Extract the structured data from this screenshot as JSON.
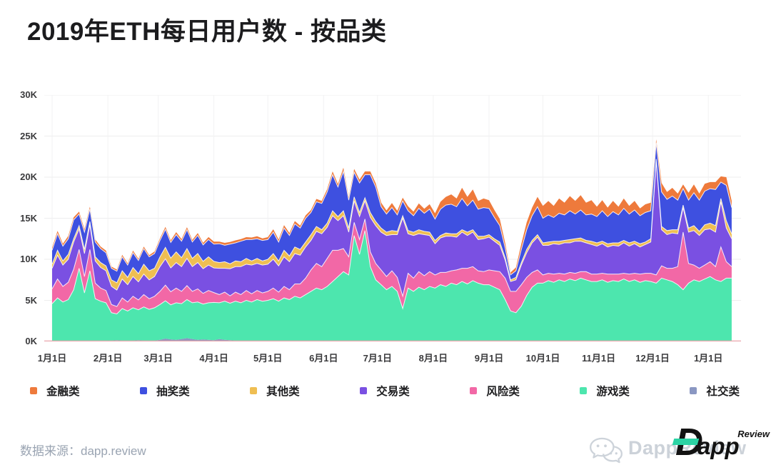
{
  "page": {
    "title": "2019年ETH每日用户数 - 按品类",
    "footer": {
      "source_text": "数据来源：dapp.review"
    },
    "watermark": {
      "gray_text": "DappReview",
      "logo_d": "D",
      "logo_app": "app",
      "logo_review": "Review",
      "logo_accent_color": "#2BD3A4"
    }
  },
  "chart_data": {
    "type": "area",
    "stacked": true,
    "title": "2019年ETH每日用户数 - 按品类",
    "values_unit": "thousands of daily users (K)",
    "grid": true,
    "ylim": [
      0,
      30
    ],
    "y_tick_labels": [
      "0K",
      "5K",
      "10K",
      "15K",
      "20K",
      "25K",
      "30K"
    ],
    "x_tick_labels": [
      "1月1日",
      "2月1日",
      "3月1日",
      "4月1日",
      "5月1日",
      "6月1日",
      "7月1日",
      "8月1日",
      "9月1日",
      "10月1日",
      "11月1日",
      "12月1日",
      "1月1日"
    ],
    "x_tick_days": [
      0,
      31,
      59,
      90,
      120,
      151,
      181,
      212,
      243,
      273,
      304,
      334,
      365
    ],
    "axis_line_color": "#E9A6AC",
    "grid_color": "#EDEDEE",
    "legend_position": "bottom",
    "legend": [
      {
        "label": "金融类",
        "color": "#EE7A3C"
      },
      {
        "label": "抽奖类",
        "color": "#3E50E0"
      },
      {
        "label": "其他类",
        "color": "#EFBE52"
      },
      {
        "label": "交易类",
        "color": "#7A50E2"
      },
      {
        "label": "风险类",
        "color": "#F268A6"
      },
      {
        "label": "游戏类",
        "color": "#4DE6AE"
      },
      {
        "label": "社交类",
        "color": "#8A97C2"
      }
    ],
    "x_days": [
      0,
      3,
      6,
      9,
      12,
      15,
      18,
      21,
      24,
      27,
      30,
      33,
      36,
      39,
      42,
      45,
      48,
      51,
      54,
      57,
      60,
      63,
      66,
      69,
      72,
      75,
      78,
      81,
      84,
      87,
      90,
      93,
      96,
      99,
      102,
      105,
      108,
      111,
      114,
      117,
      120,
      123,
      126,
      129,
      132,
      135,
      138,
      141,
      144,
      147,
      150,
      153,
      156,
      159,
      162,
      165,
      168,
      171,
      174,
      177,
      180,
      183,
      186,
      189,
      192,
      195,
      198,
      201,
      204,
      207,
      210,
      213,
      216,
      219,
      222,
      225,
      228,
      231,
      234,
      237,
      240,
      243,
      246,
      249,
      252,
      255,
      258,
      261,
      264,
      267,
      270,
      273,
      276,
      279,
      282,
      285,
      288,
      291,
      294,
      297,
      300,
      303,
      306,
      309,
      312,
      315,
      318,
      321,
      324,
      327,
      330,
      333,
      336,
      339,
      342,
      345,
      348,
      351,
      354,
      357,
      360,
      363,
      366,
      369,
      372,
      375,
      378
    ],
    "series": [
      {
        "name": "社交类",
        "color": "#8A97C2",
        "values": [
          0.1,
          0.1,
          0.1,
          0.1,
          0.1,
          0.1,
          0.1,
          0.1,
          0.1,
          0.1,
          0.1,
          0.1,
          0.15,
          0.1,
          0.1,
          0.1,
          0.15,
          0.1,
          0.1,
          0.1,
          0.2,
          0.35,
          0.25,
          0.2,
          0.3,
          0.4,
          0.3,
          0.2,
          0.25,
          0.2,
          0.15,
          0.3,
          0.2,
          0.15,
          0.1,
          0.1,
          0.1,
          0.1,
          0.1,
          0.1,
          0.1,
          0.1,
          0.1,
          0.1,
          0.1,
          0.1,
          0.1,
          0.1,
          0.1,
          0.1,
          0.1,
          0.1,
          0.1,
          0.1,
          0.1,
          0.1,
          0.1,
          0.1,
          0.1,
          0.1,
          0.1,
          0.1,
          0.1,
          0.1,
          0.1,
          0.1,
          0.1,
          0.1,
          0.1,
          0.1,
          0.1,
          0.1,
          0.1,
          0.1,
          0.1,
          0.1,
          0.1,
          0.1,
          0.1,
          0.1,
          0.1,
          0.1,
          0.1,
          0.1,
          0.1,
          0.1,
          0.1,
          0.1,
          0.1,
          0.1,
          0.1,
          0.1,
          0.1,
          0.1,
          0.1,
          0.1,
          0.1,
          0.1,
          0.1,
          0.1,
          0.1,
          0.1,
          0.1,
          0.1,
          0.1,
          0.1,
          0.1,
          0.1,
          0.1,
          0.1,
          0.1,
          0.1,
          0.1,
          0.1,
          0.1,
          0.1,
          0.1,
          0.1,
          0.1,
          0.1,
          0.1,
          0.1,
          0.1,
          0.1,
          0.1,
          0.1,
          0.1
        ]
      },
      {
        "name": "游戏类",
        "color": "#4DE6AE",
        "values": [
          4.5,
          5.2,
          4.7,
          5.0,
          6.2,
          8.8,
          5.8,
          8.5,
          5.1,
          4.8,
          4.6,
          3.4,
          3.2,
          3.9,
          3.6,
          4.0,
          3.7,
          4.1,
          3.8,
          4.0,
          4.3,
          4.6,
          4.2,
          4.5,
          4.3,
          4.7,
          4.4,
          4.6,
          4.3,
          4.5,
          4.6,
          4.4,
          4.7,
          4.5,
          4.8,
          4.6,
          4.9,
          4.7,
          5.0,
          4.8,
          4.9,
          5.1,
          4.8,
          5.2,
          5.0,
          5.4,
          5.2,
          5.6,
          6.0,
          6.4,
          6.2,
          6.6,
          7.2,
          7.8,
          8.4,
          8.0,
          12.8,
          10.5,
          13.4,
          9.0,
          7.4,
          6.8,
          6.2,
          6.6,
          6.0,
          3.9,
          6.4,
          6.0,
          6.5,
          6.2,
          6.6,
          6.4,
          6.8,
          6.6,
          7.0,
          6.8,
          7.2,
          6.9,
          7.3,
          7.0,
          6.8,
          6.8,
          6.5,
          6.2,
          5.0,
          3.6,
          3.4,
          4.2,
          5.5,
          6.5,
          7.0,
          7.0,
          7.3,
          7.1,
          7.4,
          7.2,
          7.5,
          7.3,
          7.6,
          7.4,
          7.2,
          7.2,
          7.4,
          7.1,
          7.3,
          7.2,
          7.5,
          7.2,
          7.4,
          7.1,
          7.3,
          7.2,
          7.0,
          7.6,
          7.4,
          7.2,
          6.8,
          6.2,
          7.0,
          7.4,
          7.2,
          7.5,
          7.8,
          7.4,
          7.2,
          7.6,
          7.6
        ]
      },
      {
        "name": "风险类",
        "color": "#F268A6",
        "values": [
          1.8,
          2.3,
          1.9,
          2.1,
          2.5,
          2.3,
          2.0,
          2.6,
          1.9,
          1.6,
          1.5,
          1.0,
          0.9,
          1.3,
          1.1,
          1.4,
          1.2,
          1.5,
          1.3,
          1.4,
          1.6,
          1.9,
          1.6,
          1.8,
          1.5,
          1.7,
          1.4,
          1.6,
          1.3,
          1.5,
          1.2,
          1.0,
          1.1,
          0.9,
          1.1,
          1.0,
          1.2,
          1.0,
          1.1,
          1.0,
          1.1,
          1.3,
          1.1,
          1.4,
          1.2,
          1.5,
          1.7,
          2.0,
          2.6,
          3.0,
          2.8,
          3.4,
          3.8,
          3.2,
          2.8,
          2.2,
          1.6,
          1.8,
          1.4,
          1.8,
          2.0,
          1.8,
          1.6,
          1.9,
          1.7,
          1.5,
          1.8,
          1.6,
          1.9,
          1.7,
          1.8,
          1.6,
          1.5,
          1.7,
          1.5,
          1.8,
          1.6,
          1.9,
          1.7,
          1.5,
          1.6,
          1.8,
          2.0,
          2.2,
          2.6,
          2.4,
          2.6,
          2.6,
          2.2,
          1.8,
          1.6,
          1.0,
          0.9,
          1.0,
          0.8,
          0.9,
          0.8,
          0.9,
          0.8,
          1.0,
          0.9,
          0.9,
          0.8,
          1.0,
          0.8,
          0.9,
          0.7,
          0.9,
          0.8,
          1.0,
          0.9,
          1.0,
          1.0,
          1.5,
          1.4,
          1.6,
          2.2,
          7.0,
          2.4,
          1.8,
          1.6,
          1.7,
          1.8,
          1.6,
          4.2,
          2.0,
          1.4
        ]
      },
      {
        "name": "交易类",
        "color": "#7A50E2",
        "values": [
          2.5,
          2.9,
          2.6,
          2.8,
          3.3,
          2.5,
          2.8,
          3.0,
          2.7,
          2.5,
          2.4,
          2.2,
          2.0,
          2.3,
          2.1,
          2.4,
          2.2,
          2.5,
          2.3,
          2.4,
          3.0,
          3.2,
          2.9,
          3.1,
          3.0,
          3.3,
          3.0,
          3.2,
          3.0,
          3.1,
          3.0,
          3.2,
          2.9,
          3.3,
          3.1,
          3.4,
          3.2,
          3.5,
          3.3,
          3.4,
          3.3,
          3.5,
          3.2,
          3.6,
          3.4,
          3.7,
          3.5,
          3.8,
          3.6,
          3.9,
          4.0,
          3.8,
          4.2,
          3.6,
          4.0,
          3.0,
          2.6,
          2.8,
          2.2,
          4.2,
          4.6,
          4.6,
          5.0,
          4.4,
          5.2,
          9.5,
          4.8,
          5.2,
          4.6,
          5.0,
          4.4,
          3.8,
          4.2,
          4.4,
          4.2,
          4.0,
          4.4,
          4.0,
          4.2,
          3.8,
          4.0,
          4.0,
          3.6,
          3.2,
          2.2,
          1.2,
          1.4,
          2.4,
          3.0,
          3.6,
          4.0,
          3.6,
          3.4,
          3.7,
          3.5,
          3.8,
          3.6,
          3.9,
          3.7,
          3.5,
          3.6,
          3.4,
          3.6,
          3.3,
          3.5,
          3.4,
          3.7,
          3.4,
          3.6,
          3.3,
          3.5,
          3.8,
          13.8,
          4.4,
          4.1,
          4.3,
          4.0,
          3.0,
          3.8,
          4.2,
          4.0,
          4.3,
          4.0,
          4.2,
          5.5,
          4.1,
          3.4
        ]
      },
      {
        "name": "其他类",
        "color": "#EFBE52",
        "values": [
          0.5,
          0.6,
          0.5,
          0.6,
          0.4,
          0.4,
          0.5,
          0.4,
          0.5,
          0.6,
          0.6,
          0.8,
          0.9,
          1.0,
          0.9,
          1.1,
          1.0,
          1.2,
          1.1,
          1.0,
          1.2,
          1.4,
          1.2,
          1.3,
          1.1,
          1.2,
          1.0,
          1.1,
          0.9,
          1.0,
          0.8,
          0.7,
          0.8,
          0.6,
          0.7,
          0.6,
          0.7,
          0.5,
          0.6,
          0.5,
          0.6,
          0.7,
          0.6,
          0.8,
          0.7,
          0.8,
          0.7,
          0.6,
          0.7,
          0.6,
          0.5,
          0.5,
          0.6,
          0.5,
          0.6,
          0.5,
          0.5,
          0.5,
          0.4,
          0.6,
          0.5,
          0.5,
          0.4,
          0.5,
          0.4,
          0.3,
          0.4,
          0.4,
          0.5,
          0.4,
          0.4,
          0.4,
          0.3,
          0.4,
          0.3,
          0.4,
          0.3,
          0.4,
          0.3,
          0.4,
          0.3,
          0.3,
          0.3,
          0.4,
          0.3,
          0.2,
          0.3,
          0.3,
          0.4,
          0.3,
          0.3,
          0.3,
          0.4,
          0.3,
          0.4,
          0.3,
          0.4,
          0.3,
          0.4,
          0.3,
          0.4,
          0.4,
          0.3,
          0.4,
          0.3,
          0.4,
          0.3,
          0.4,
          0.3,
          0.4,
          0.3,
          0.4,
          0.3,
          0.4,
          0.5,
          0.4,
          0.5,
          0.3,
          0.5,
          0.6,
          0.5,
          0.6,
          0.7,
          0.8,
          0.4,
          0.9,
          0.6
        ]
      },
      {
        "name": "抽奖类",
        "color": "#3E50E0",
        "values": [
          1.7,
          2.0,
          1.8,
          1.9,
          2.3,
          1.4,
          2.1,
          1.5,
          1.8,
          1.7,
          1.6,
          1.4,
          1.4,
          1.7,
          1.5,
          1.8,
          1.6,
          1.9,
          1.7,
          1.8,
          2.0,
          2.2,
          1.9,
          2.1,
          2.0,
          2.3,
          2.0,
          2.2,
          2.0,
          2.1,
          2.1,
          2.3,
          2.0,
          2.4,
          2.2,
          2.5,
          2.3,
          2.6,
          2.4,
          2.5,
          2.4,
          2.6,
          2.3,
          2.7,
          2.5,
          2.8,
          2.6,
          2.9,
          2.7,
          3.0,
          3.2,
          3.8,
          4.4,
          3.6,
          4.8,
          3.4,
          3.0,
          3.6,
          2.8,
          4.6,
          4.2,
          2.6,
          2.2,
          2.8,
          2.0,
          1.8,
          2.4,
          2.0,
          2.6,
          2.2,
          2.8,
          2.6,
          3.2,
          3.4,
          3.6,
          3.3,
          3.8,
          3.2,
          3.6,
          3.3,
          3.5,
          3.2,
          2.6,
          2.0,
          1.2,
          0.6,
          0.8,
          1.6,
          2.4,
          3.0,
          3.4,
          3.0,
          3.3,
          2.9,
          3.4,
          3.1,
          3.5,
          3.0,
          3.4,
          3.1,
          3.3,
          3.2,
          3.7,
          3.3,
          3.8,
          3.4,
          3.9,
          3.5,
          3.8,
          3.4,
          3.6,
          3.4,
          2.0,
          4.2,
          3.8,
          4.1,
          3.6,
          2.0,
          3.4,
          4.0,
          3.8,
          4.1,
          4.2,
          4.4,
          2.0,
          4.3,
          3.2
        ]
      },
      {
        "name": "金融类",
        "color": "#EE7A3C",
        "values": [
          0.3,
          0.35,
          0.3,
          0.35,
          0.3,
          0.3,
          0.35,
          0.3,
          0.3,
          0.25,
          0.25,
          0.2,
          0.2,
          0.25,
          0.2,
          0.25,
          0.2,
          0.25,
          0.2,
          0.25,
          0.25,
          0.3,
          0.25,
          0.3,
          0.25,
          0.3,
          0.25,
          0.3,
          0.25,
          0.3,
          0.3,
          0.25,
          0.3,
          0.25,
          0.3,
          0.25,
          0.3,
          0.25,
          0.3,
          0.25,
          0.3,
          0.35,
          0.3,
          0.35,
          0.3,
          0.35,
          0.3,
          0.35,
          0.3,
          0.35,
          0.3,
          0.35,
          0.4,
          0.35,
          0.45,
          0.35,
          0.4,
          0.4,
          0.4,
          0.4,
          0.45,
          0.5,
          0.45,
          0.55,
          0.5,
          0.4,
          0.55,
          0.5,
          0.6,
          0.55,
          0.6,
          0.7,
          0.9,
          1.0,
          1.2,
          1.0,
          1.3,
          1.1,
          1.3,
          1.0,
          1.1,
          1.0,
          0.9,
          0.8,
          0.6,
          0.3,
          0.4,
          0.7,
          0.9,
          1.0,
          1.2,
          1.5,
          1.7,
          1.4,
          1.8,
          1.5,
          1.8,
          1.6,
          1.8,
          1.5,
          1.7,
          1.2,
          1.3,
          1.1,
          1.3,
          1.0,
          1.2,
          1.0,
          1.1,
          0.9,
          1.0,
          1.0,
          0.4,
          1.1,
          0.9,
          1.0,
          0.8,
          0.5,
          0.9,
          1.0,
          0.8,
          0.9,
          0.8,
          0.9,
          0.7,
          1.0,
          0.8
        ]
      }
    ]
  }
}
